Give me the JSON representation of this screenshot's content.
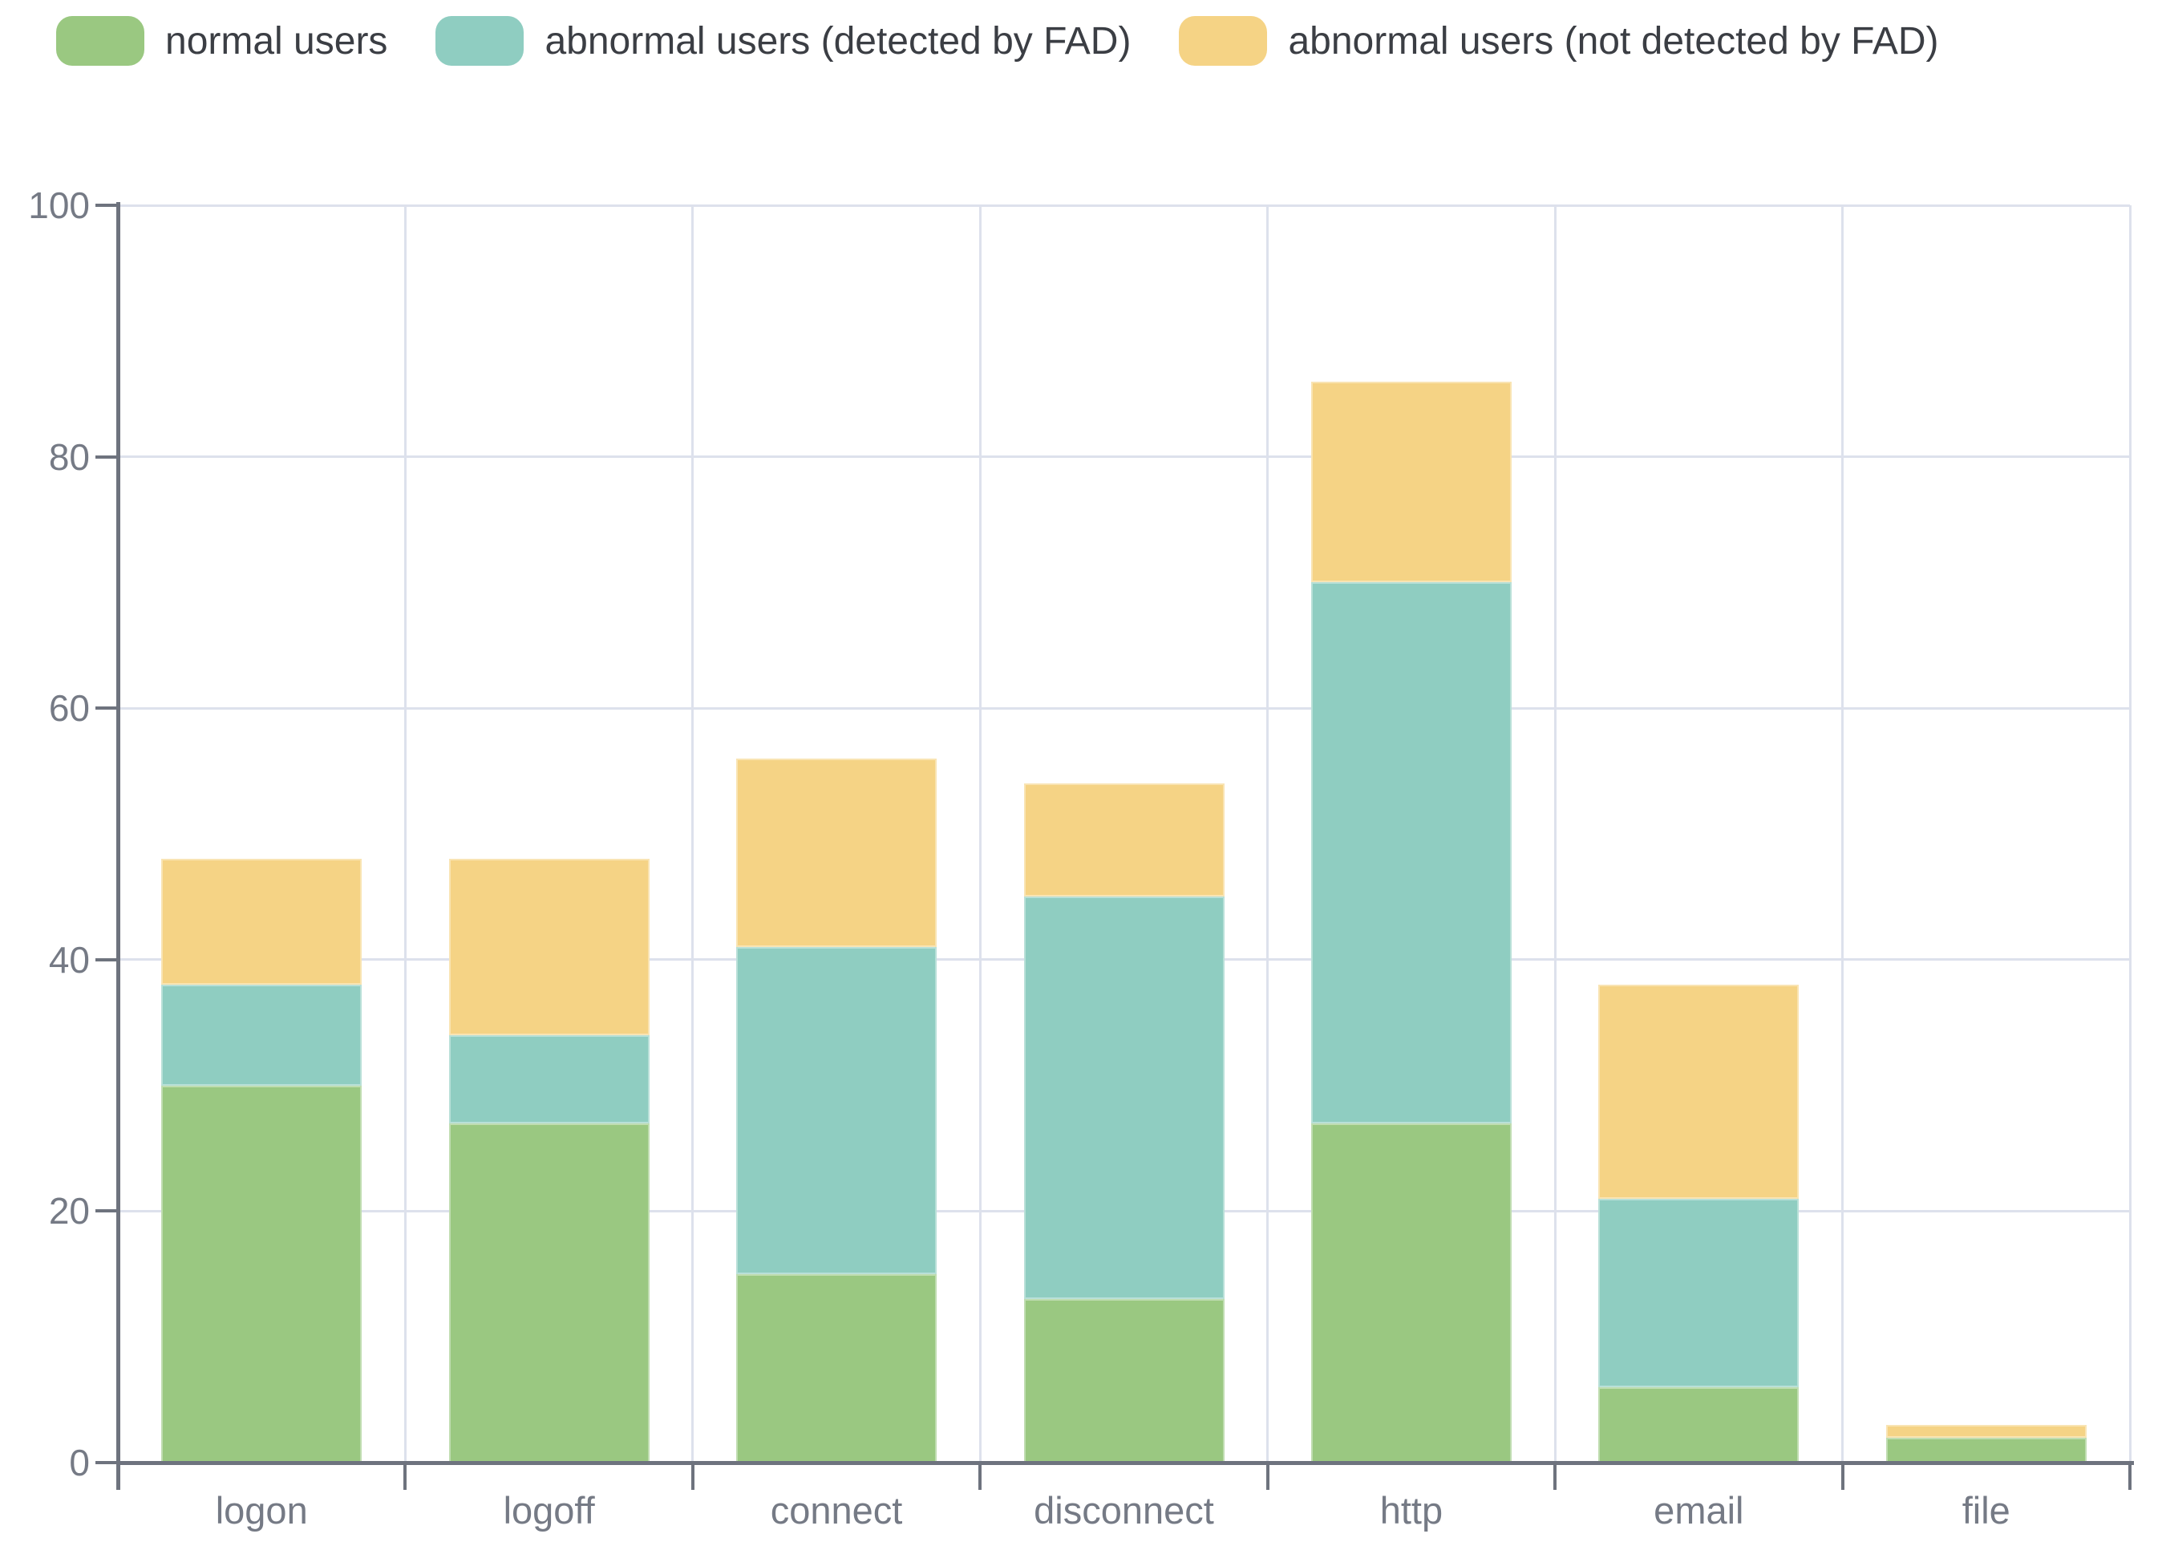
{
  "chart_data": {
    "type": "bar",
    "stacked": true,
    "title": "",
    "xlabel": "",
    "ylabel": "",
    "categories": [
      "logon",
      "logoff",
      "connect",
      "disconnect",
      "http",
      "email",
      "file"
    ],
    "series": [
      {
        "key": "normal",
        "name": "normal users",
        "color": "#9ac881",
        "values": [
          30,
          27,
          15,
          13,
          27,
          6,
          2
        ]
      },
      {
        "key": "detected",
        "name": "abnormal users (detected by FAD)",
        "color": "#8fcdc1",
        "values": [
          8,
          7,
          26,
          32,
          43,
          15,
          0
        ]
      },
      {
        "key": "not-detected",
        "name": "abnormal users (not detected by FAD)",
        "color": "#f5d385",
        "values": [
          10,
          14,
          15,
          9,
          16,
          17,
          1
        ]
      }
    ],
    "stack_totals": [
      48,
      48,
      56,
      54,
      86,
      38,
      3
    ],
    "ylim": [
      0,
      100
    ],
    "yticks": [
      0,
      20,
      40,
      60,
      80,
      100
    ],
    "grid": true,
    "legend_position": "top"
  },
  "colors": {
    "background": "#ffffff",
    "gridline": "#dde1ec",
    "axis": "#6e737e",
    "tick_label": "#757a85",
    "legend_text": "#3b3e44"
  }
}
